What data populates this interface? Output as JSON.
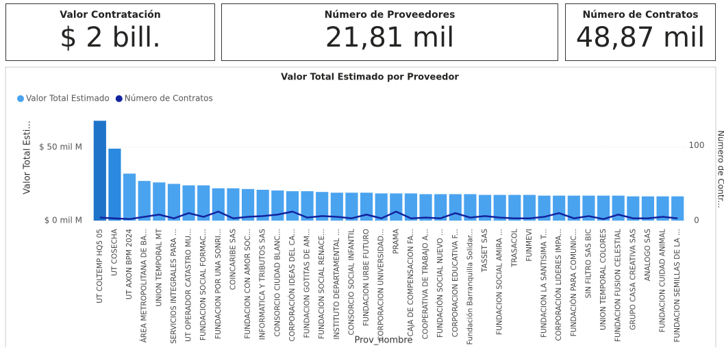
{
  "cards": [
    {
      "title": "Valor Contratación",
      "value": "$ 2 bill."
    },
    {
      "title": "Número de Proveedores",
      "value": "21,81 mil"
    },
    {
      "title": "Número de Contratos",
      "value": "48,87 mil"
    }
  ],
  "chart_data": {
    "type": "bar_line",
    "title": "Valor Total Estimado por Proveedor",
    "x_label": "Prov_nombre",
    "y_label": "Valor Total Esti...",
    "y2_label": "Número de Contr...",
    "categories": [
      "UT COLTEMP HQ5 05",
      "UT COSECHA",
      "UT AXON BPM 2024",
      "ÁREA METROPOLITANA DE BA...",
      "UNION TEMPORAL MT",
      "SERVICIOS INTEGRALES PARA ...",
      "UT OPERADOR CATASTRO MU...",
      "FUNDACION SOCIAL FORMAC...",
      "FUNDACION POR UNA SONRI...",
      "COINCARIBE SAS",
      "FUNDACION CON AMOR SOC...",
      "INFORMATICA Y TRIBUTOS SAS",
      "CONSORCIO CIUDAD BLANC...",
      "CORPORACIÓN IDEAS DEL CA...",
      "FUNDACION GOTITAS DE AM...",
      "FUNDACION SOCIAL RENACE...",
      "INSTITUTO DEPARTAMENTAL ...",
      "CONSORCIO SOCIAL INFANTIL",
      "FUNDACION URBE FUTURO",
      "CORPORACION UNIVERSIDAD...",
      "PRAMA",
      "CAJA DE COMPENSACION FA...",
      "COOPERATIVA DE TRABAJO A...",
      "FUNDACIÓN SOCIAL NUEVO ...",
      "CORPORACION EDUCATIVA F...",
      "Fundación Barranquilla Solidar...",
      "TASSET SAS",
      "FUNDACION SOCIAL AMIRA ...",
      "TRASACOL",
      "FUNMEVI",
      "FUNDACION LA SANTISIMA T...",
      "CORPORACIÓN LIDERES IMPA...",
      "FUNDACIÓN PARA COMUNIC...",
      "SIN FILTRO SAS BIC",
      "UNION TEMPORAL COLORES",
      "FUNDACION FUSION CELESTIAL",
      "GRUPO CASA CREATIVA SAS",
      "ANALOGO SAS",
      "FUNDACION CUIDAD ANIMAL",
      "FUNDACION SEMILLAS DE LA ..."
    ],
    "series": [
      {
        "name": "Valor Total Estimado",
        "color": "#4aa3ef",
        "kind": "bar",
        "bar_colors": [
          "#1f74c9",
          "#2b8ae0"
        ],
        "values": [
          68,
          49,
          32,
          27,
          26,
          25,
          24,
          24,
          22,
          22,
          21.5,
          21,
          20.5,
          20,
          20,
          19.5,
          19,
          19,
          19,
          18.5,
          18.5,
          18.5,
          18,
          18,
          18,
          18,
          17.5,
          17.5,
          17.5,
          17.5,
          17,
          17,
          17,
          17,
          17,
          17,
          16.5,
          16.5,
          16.5,
          16.5
        ]
      },
      {
        "name": "Número de Contratos",
        "color": "#12239e",
        "kind": "line",
        "axis": "y2",
        "values": [
          4,
          3,
          2,
          5,
          8,
          3,
          10,
          5,
          12,
          3,
          5,
          6,
          8,
          12,
          4,
          6,
          5,
          3,
          8,
          3,
          12,
          3,
          4,
          3,
          10,
          4,
          6,
          4,
          3,
          3,
          5,
          10,
          3,
          6,
          2,
          8,
          3,
          3,
          5,
          3
        ]
      }
    ],
    "ylim": [
      0,
      70
    ],
    "yticks": [
      {
        "value": 0,
        "label": "$ 0 mil M"
      },
      {
        "value": 50,
        "label": "$ 50 mil M"
      }
    ],
    "y2lim": [
      0,
      137
    ],
    "y2ticks": [
      0,
      100
    ],
    "grid": true,
    "legend": "top-left"
  }
}
